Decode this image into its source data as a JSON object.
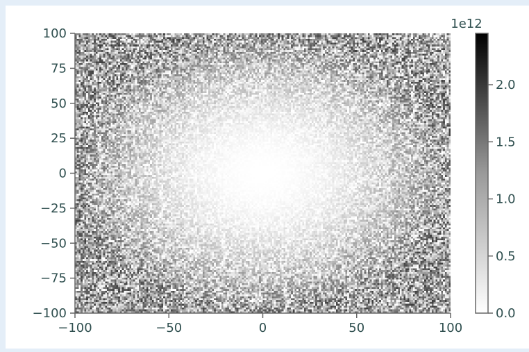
{
  "chart_data": {
    "type": "heatmap",
    "title": "",
    "xlabel": "",
    "ylabel": "",
    "xlim": [
      -100,
      100
    ],
    "ylim": [
      -100,
      100
    ],
    "x_ticks": [
      -100,
      -50,
      0,
      50,
      100
    ],
    "y_ticks": [
      100,
      75,
      50,
      25,
      0,
      -25,
      -50,
      -75,
      -100
    ],
    "x_tick_labels": [
      "−100",
      "−50",
      "0",
      "50",
      "100"
    ],
    "y_tick_labels": [
      "100",
      "75",
      "50",
      "25",
      "0",
      "−25",
      "−50",
      "−75",
      "−100"
    ],
    "grid_resolution": [
      200,
      150
    ],
    "pattern": "noisy radial gradient: values near 0 at the center (0,0), increasing toward edges and corners",
    "center_value": 0.0,
    "edge_value_typical": 1200000000000.0,
    "colormap": "Greys",
    "colorbar": {
      "min": 0.0,
      "max": 2450000000000.0,
      "ticks": [
        0.0,
        500000000000.0,
        1000000000000.0,
        1500000000000.0,
        2000000000000.0
      ],
      "tick_labels": [
        "0.0",
        "0.5",
        "1.0",
        "1.5",
        "2.0"
      ],
      "offset_label": "1e12"
    },
    "grid": false,
    "colors": {
      "text": "#2f4f4f",
      "axis": "#666666",
      "page_background": "#e4eef8"
    }
  }
}
